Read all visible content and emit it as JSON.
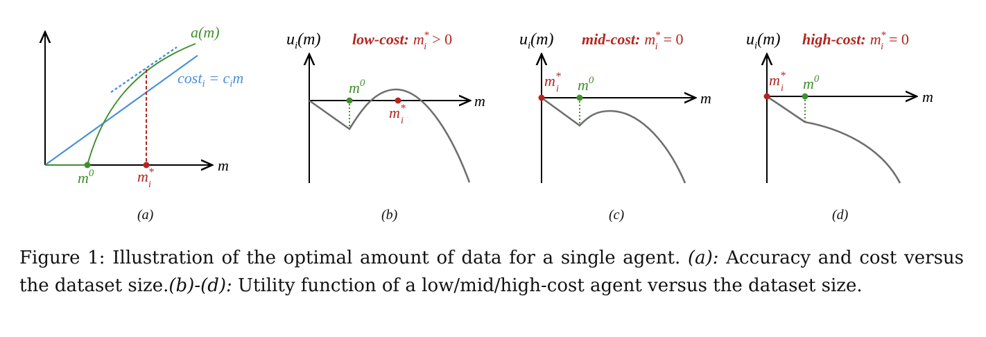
{
  "colors": {
    "green": "#3f8f2f",
    "blue": "#4a90d9",
    "red": "#b3261e",
    "gray": "#6e6e6e",
    "axis": "#000000"
  },
  "panels": [
    {
      "id": "a",
      "label": "(a)",
      "curve_label": "a(m)",
      "cost_label": "cost",
      "cost_label_sub": "i",
      "cost_label_rhs": " = c",
      "cost_label_rhs_sub": "i",
      "cost_label_rhs_tail": "m",
      "x_axis_label": "m",
      "m0_base": "m",
      "m0_sup": "0",
      "mstar_base": "m",
      "mstar_sup": "*",
      "mstar_sub": "i"
    },
    {
      "id": "b",
      "label": "(b)",
      "y_axis_base": "u",
      "y_axis_sub": "i",
      "y_axis_tail": "(m)",
      "regime_bold": "low-cost:",
      "regime_base": "m",
      "regime_sup": "*",
      "regime_sub": "i",
      "regime_rel": "> 0",
      "x_axis_label": "m",
      "m0_base": "m",
      "m0_sup": "0",
      "mstar_base": "m",
      "mstar_sup": "*",
      "mstar_sub": "i"
    },
    {
      "id": "c",
      "label": "(c)",
      "y_axis_base": "u",
      "y_axis_sub": "i",
      "y_axis_tail": "(m)",
      "regime_bold": "mid-cost:",
      "regime_base": "m",
      "regime_sup": "*",
      "regime_sub": "i",
      "regime_rel": "= 0",
      "x_axis_label": "m",
      "m0_base": "m",
      "m0_sup": "0",
      "mstar_base": "m",
      "mstar_sup": "*",
      "mstar_sub": "i"
    },
    {
      "id": "d",
      "label": "(d)",
      "y_axis_base": "u",
      "y_axis_sub": "i",
      "y_axis_tail": "(m)",
      "regime_bold": "high-cost:",
      "regime_base": "m",
      "regime_sup": "*",
      "regime_sub": "i",
      "regime_rel": "= 0",
      "x_axis_label": "m",
      "m0_base": "m",
      "m0_sup": "0",
      "mstar_base": "m",
      "mstar_sup": "*",
      "mstar_sub": "i"
    }
  ],
  "caption": {
    "prefix": "Figure 1: Illustration of the optimal amount of data for a single agent. ",
    "a_tag": "(a):",
    "a_text": " Accuracy and cost versus the dataset size.",
    "bd_tag": "(b)-(d):",
    "bd_text": " Utility function of a low/mid/high-cost agent versus the dataset size."
  }
}
